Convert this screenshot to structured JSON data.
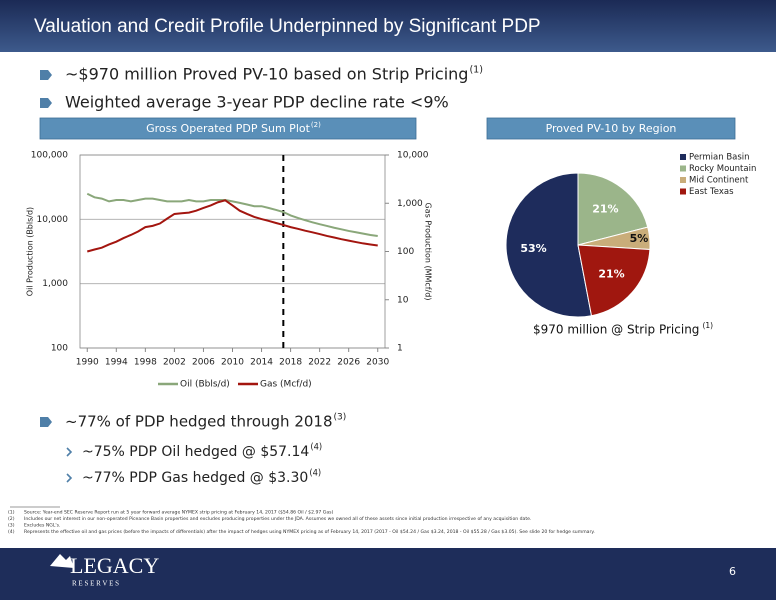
{
  "header": {
    "title": "Valuation and Credit Profile Underpinned by Significant PDP"
  },
  "bullets": [
    {
      "text": "~$970 million Proved PV-10 based on Strip Pricing",
      "note": "(1)"
    },
    {
      "text": "Weighted average 3-year PDP decline rate <9%"
    }
  ],
  "chart_data": [
    {
      "type": "line",
      "title": "Gross Operated PDP Sum Plot",
      "title_note": "(2)",
      "y_label": "Oil Production (Bbls/d)",
      "y2_label": "Gas Production (MMcf/d)",
      "x": [
        1990,
        1991,
        1992,
        1993,
        1994,
        1995,
        1996,
        1997,
        1998,
        1999,
        2000,
        2001,
        2002,
        2003,
        2004,
        2005,
        2006,
        2007,
        2008,
        2009,
        2010,
        2011,
        2012,
        2013,
        2014,
        2015,
        2016,
        2017,
        2018,
        2019,
        2020,
        2021,
        2022,
        2023,
        2024,
        2025,
        2026,
        2027,
        2028,
        2029,
        2030
      ],
      "xlim": [
        1989,
        2031
      ],
      "xticks": [
        1990,
        1994,
        1998,
        2002,
        2006,
        2010,
        2014,
        2018,
        2022,
        2026,
        2030
      ],
      "yscale": "log",
      "ylim": [
        100,
        100000
      ],
      "yticks": [
        100,
        {
          "value": 1000,
          "label": "1,000"
        },
        {
          "value": 10000,
          "label": "10,000"
        },
        {
          "value": 100000,
          "label": "100,000"
        }
      ],
      "y2lim": [
        1,
        10000
      ],
      "y2ticks": [
        1,
        10,
        100,
        {
          "value": 1000,
          "label": "1,000"
        },
        {
          "value": 10000,
          "label": "10,000"
        }
      ],
      "grid": true,
      "vlines": [
        2017
      ],
      "series": [
        {
          "name": "Oil (Bbls/d)",
          "color": "#8aa77a",
          "values": [
            25000,
            22000,
            21000,
            19000,
            20000,
            20000,
            19000,
            20000,
            21000,
            21000,
            20000,
            19000,
            19000,
            19000,
            20000,
            19000,
            19000,
            20000,
            20000,
            20000,
            19000,
            18000,
            17000,
            16000,
            16000,
            15000,
            14000,
            13000,
            11500,
            10500,
            9700,
            9000,
            8400,
            7900,
            7400,
            7000,
            6600,
            6300,
            6000,
            5700,
            5500
          ]
        },
        {
          "name": "Gas (Mcf/d)",
          "color": "#a3150f",
          "axis": "y2",
          "values": [
            100,
            110,
            120,
            140,
            160,
            190,
            220,
            260,
            320,
            340,
            380,
            480,
            600,
            620,
            640,
            700,
            800,
            900,
            1050,
            1150,
            900,
            700,
            600,
            520,
            470,
            430,
            390,
            355,
            320,
            295,
            270,
            250,
            230,
            210,
            195,
            180,
            168,
            157,
            147,
            140,
            133
          ]
        }
      ]
    },
    {
      "type": "pie",
      "title": "Proved PV-10 by Region",
      "caption": "$970 million @ Strip Pricing",
      "caption_note": "(1)",
      "categories": [
        "Permian Basin",
        "Rocky Mountain",
        "Mid Continent",
        "East Texas"
      ],
      "values": [
        53,
        21,
        5,
        21
      ],
      "value_labels": [
        "53%",
        "21%",
        "5%",
        "21%"
      ],
      "colors": [
        "#1e2c5c",
        "#9bb58a",
        "#c9ad7a",
        "#a0170f"
      ]
    }
  ],
  "hedge": {
    "text": "~77% of PDP hedged through 2018",
    "note": "(3)",
    "items": [
      {
        "text": "~75% PDP Oil hedged @ $57.14",
        "note": "(4)"
      },
      {
        "text": "~77% PDP Gas hedged @ $3.30",
        "note": "(4)"
      }
    ]
  },
  "footnotes": [
    {
      "num": "(1)",
      "text": "Source: Year-end SEC Reserve Report run at 5 year forward average NYMEX strip pricing at February 14, 2017 ($54.86 Oil / $2.97 Gas)"
    },
    {
      "num": "(2)",
      "text": "Includes our net interest in our non-operated Piceance Basin properties and excludes producing properties under the JDA. Assumes we owned all of these assets since initial production irrespective of any acquisition date."
    },
    {
      "num": "(3)",
      "text": "Excludes NGL's."
    },
    {
      "num": "(4)",
      "text": "Represents the effective oil and gas prices (before the impacts of differentials) after the impact of hedges using NYMEX pricing as of February 14, 2017 (2017 - Oil $54.24 / Gas $3.24, 2018 - Oil $55.28 / Gas $3.05). See slide 20 for hedge summary."
    }
  ],
  "footer": {
    "logo": "LEGACY",
    "logo_sub": "R E S E R V E S",
    "page": "6"
  }
}
